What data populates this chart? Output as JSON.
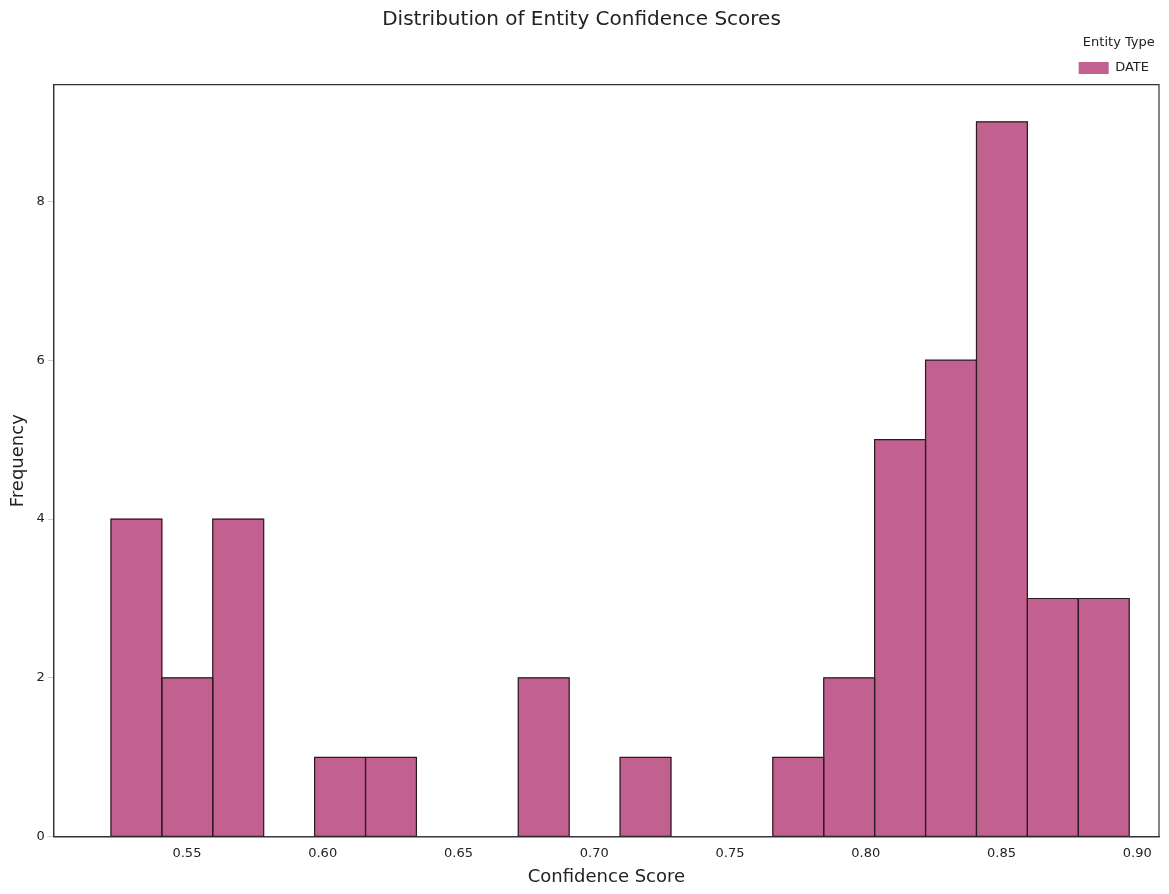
{
  "chart_data": {
    "type": "histogram",
    "title": "Distribution of Entity Confidence Scores",
    "xlabel": "Confidence Score",
    "ylabel": "Frequency",
    "legend_title": "Entity Type",
    "legend": "top right",
    "bins": [
      0.522,
      0.5408,
      0.5595,
      0.5783,
      0.597,
      0.6158,
      0.6345,
      0.6533,
      0.672,
      0.6908,
      0.7095,
      0.7283,
      0.747,
      0.7658,
      0.7845,
      0.8033,
      0.822,
      0.8408,
      0.8595,
      0.8783,
      0.897
    ],
    "series": [
      {
        "name": "DATE",
        "color": "#c2608f",
        "values": [
          4,
          2,
          4,
          0,
          1,
          1,
          0,
          0,
          2,
          0,
          1,
          0,
          0,
          1,
          2,
          5,
          6,
          9,
          3,
          3
        ]
      }
    ],
    "xlim": [
      0.501,
      0.908
    ],
    "ylim": [
      0,
      9.47
    ],
    "xticks": [
      {
        "value": 0.55,
        "label": "0.55"
      },
      {
        "value": 0.6,
        "label": "0.60"
      },
      {
        "value": 0.65,
        "label": "0.65"
      },
      {
        "value": 0.7,
        "label": "0.70"
      },
      {
        "value": 0.75,
        "label": "0.75"
      },
      {
        "value": 0.8,
        "label": "0.80"
      },
      {
        "value": 0.85,
        "label": "0.85"
      },
      {
        "value": 0.9,
        "label": "0.90"
      }
    ],
    "yticks": [
      0,
      2,
      4,
      6,
      8
    ],
    "grid": false
  }
}
